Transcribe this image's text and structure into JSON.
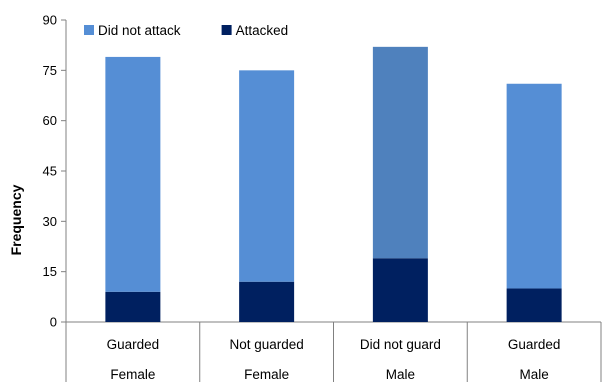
{
  "chart_data": {
    "type": "bar",
    "stacked": true,
    "title": "",
    "xlabel": "",
    "ylabel": "Frequency",
    "ylim": [
      0,
      90
    ],
    "yticks": [
      0,
      15,
      30,
      45,
      60,
      75,
      90
    ],
    "categories": [
      {
        "label": "Guarded",
        "group": "Female"
      },
      {
        "label": "Not guarded",
        "group": "Female"
      },
      {
        "label": "Did not guard",
        "group": "Male"
      },
      {
        "label": "Guarded",
        "group": "Male"
      }
    ],
    "series": [
      {
        "name": "Attacked",
        "color": "#002060",
        "values": [
          9,
          12,
          19,
          10
        ]
      },
      {
        "name": "Did not attack",
        "color": "#558ed5",
        "values": [
          70,
          63,
          63,
          61
        ]
      }
    ],
    "highlight_colors": [
      "#558ed5",
      "#558ed5",
      "#4f81bd",
      "#558ed5"
    ],
    "legend": {
      "position": "top-left",
      "order": [
        "Did not attack",
        "Attacked"
      ]
    },
    "grid": false
  }
}
